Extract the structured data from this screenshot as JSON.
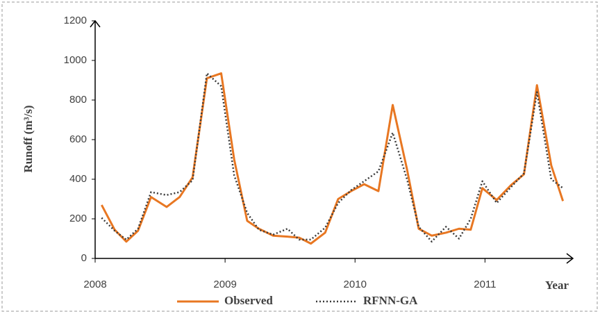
{
  "chart_data": {
    "type": "line",
    "x_label": "Year",
    "y_label": "Runoff (m³/s)",
    "x": [
      2008.05,
      2008.15,
      2008.24,
      2008.33,
      2008.43,
      2008.55,
      2008.65,
      2008.75,
      2008.86,
      2008.97,
      2009.07,
      2009.17,
      2009.26,
      2009.37,
      2009.48,
      2009.57,
      2009.66,
      2009.77,
      2009.87,
      2009.97,
      2010.07,
      2010.18,
      2010.29,
      2010.4,
      2010.49,
      2010.59,
      2010.7,
      2010.8,
      2010.89,
      2010.98,
      2011.09,
      2011.2,
      2011.3,
      2011.4,
      2011.51,
      2011.6
    ],
    "series": [
      {
        "name": "Observed",
        "color": "#e87722",
        "dash": "solid",
        "values": [
          270,
          145,
          85,
          140,
          310,
          260,
          310,
          410,
          910,
          935,
          500,
          190,
          150,
          115,
          110,
          105,
          75,
          130,
          300,
          340,
          375,
          340,
          775,
          450,
          150,
          115,
          130,
          150,
          145,
          355,
          295,
          370,
          425,
          875,
          470,
          290
        ]
      },
      {
        "name": "RFNN-GA",
        "color": "#3a3a3a",
        "dash": "dotted",
        "values": [
          205,
          140,
          95,
          150,
          335,
          320,
          335,
          395,
          935,
          870,
          420,
          230,
          145,
          120,
          150,
          95,
          95,
          155,
          280,
          345,
          390,
          440,
          635,
          400,
          160,
          85,
          160,
          100,
          200,
          390,
          280,
          360,
          430,
          840,
          400,
          355
        ]
      }
    ],
    "xlim": [
      2008,
      2011.65
    ],
    "xticks": [
      2008,
      2009,
      2010,
      2011
    ],
    "ylim": [
      0,
      1200
    ],
    "yticks": [
      0,
      200,
      400,
      600,
      800,
      1000,
      1200
    ],
    "grid": false,
    "legend": "bottom"
  }
}
